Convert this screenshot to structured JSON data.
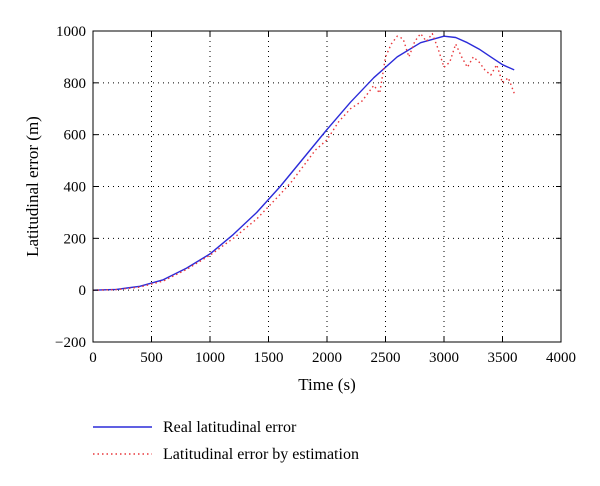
{
  "chart_data": {
    "type": "line",
    "xlabel": "Time (s)",
    "ylabel": "Latitudinal error (m)",
    "xlim": [
      0,
      4000
    ],
    "ylim": [
      -200,
      1000
    ],
    "xticks": [
      0,
      500,
      1000,
      1500,
      2000,
      2500,
      3000,
      3500,
      4000
    ],
    "xtick_labels": [
      "0",
      "500",
      "1000",
      "1500",
      "2000",
      "2500",
      "3000",
      "3500",
      "4000"
    ],
    "yticks": [
      -200,
      0,
      200,
      400,
      600,
      800,
      1000
    ],
    "ytick_labels": [
      "−200",
      "0",
      "200",
      "400",
      "600",
      "800",
      "1000"
    ],
    "grid": true,
    "grid_style": "dotted",
    "legend_position": "below",
    "series": [
      {
        "name": "Real latitudinal error",
        "color": "#2b2bd9",
        "style": "solid",
        "x": [
          0,
          200,
          400,
          600,
          800,
          1000,
          1200,
          1400,
          1600,
          1800,
          2000,
          2200,
          2400,
          2600,
          2800,
          3000,
          3100,
          3200,
          3300,
          3400,
          3500,
          3600
        ],
        "y": [
          0,
          3,
          15,
          40,
          85,
          140,
          215,
          300,
          400,
          510,
          620,
          725,
          820,
          900,
          955,
          980,
          975,
          955,
          930,
          900,
          870,
          850
        ]
      },
      {
        "name": "Latitudinal error by estimation",
        "color": "#e8363a",
        "style": "dotted",
        "x": [
          0,
          200,
          400,
          600,
          800,
          1000,
          1200,
          1400,
          1600,
          1700,
          1800,
          1900,
          2000,
          2100,
          2200,
          2300,
          2400,
          2450,
          2500,
          2550,
          2600,
          2650,
          2700,
          2750,
          2800,
          2850,
          2900,
          2950,
          3000,
          3050,
          3100,
          3150,
          3200,
          3250,
          3300,
          3350,
          3400,
          3450,
          3500,
          3550,
          3600
        ],
        "y": [
          0,
          2,
          12,
          35,
          80,
          135,
          200,
          275,
          370,
          420,
          480,
          540,
          580,
          650,
          700,
          730,
          790,
          760,
          900,
          950,
          980,
          970,
          900,
          960,
          990,
          960,
          990,
          930,
          860,
          880,
          950,
          900,
          860,
          900,
          880,
          850,
          830,
          870,
          800,
          820,
          760
        ]
      }
    ]
  }
}
